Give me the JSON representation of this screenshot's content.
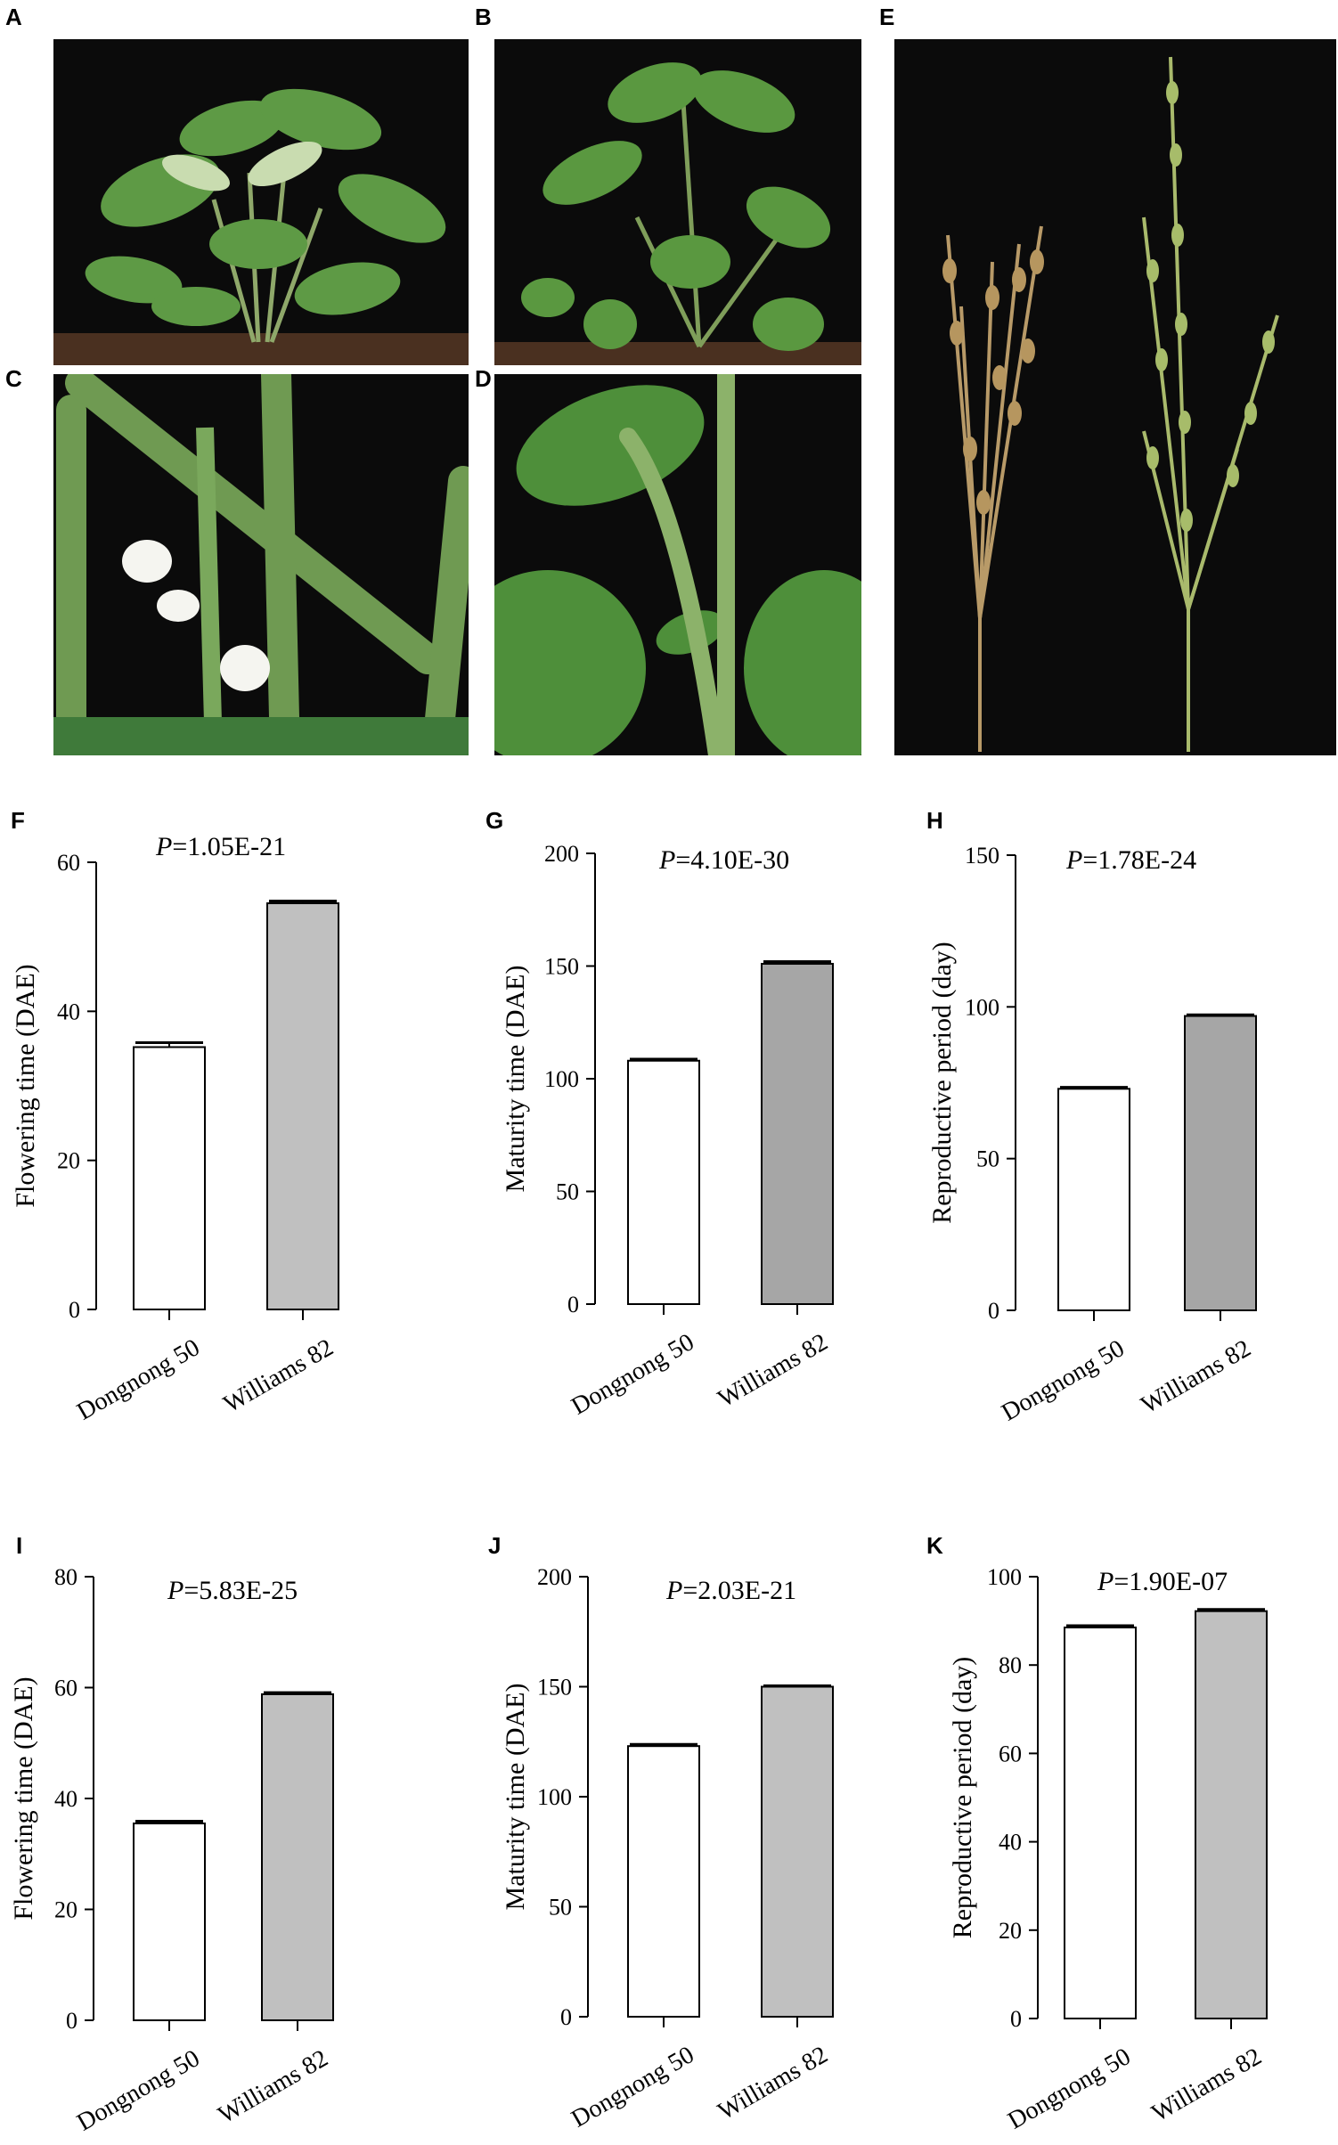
{
  "panels": {
    "A": "A",
    "B": "B",
    "C": "C",
    "D": "D",
    "E": "E",
    "F": "F",
    "G": "G",
    "H": "H",
    "I": "I",
    "J": "J",
    "K": "K"
  },
  "photo_descriptions_icons": {
    "A": "soybean-plant-photo-icon",
    "B": "soybean-plant-photo-icon",
    "C": "soybean-flower-photo-icon",
    "D": "soybean-stem-leaf-photo-icon",
    "E": "mature-plants-photo-icon"
  },
  "colors": {
    "bar_dongnong": "#ffffff",
    "bar_williams_light": "#c0c0c0",
    "bar_williams_dark": "#a6a6a6",
    "axis": "#000000",
    "photo_bg": "#0b0b0b"
  },
  "chart_data": [
    {
      "id": "F",
      "type": "bar",
      "categories": [
        "Dongnong 50",
        "Williams 82"
      ],
      "values": [
        35.2,
        54.5
      ],
      "errors": [
        0.6,
        0.3
      ],
      "p_label": "P",
      "p_value": "=1.05E-21",
      "ylabel": "Flowering time (DAE)",
      "ylim": [
        0,
        60
      ],
      "yticks": [
        0,
        20,
        40,
        60
      ],
      "bar_colors": [
        "#ffffff",
        "#c0c0c0"
      ]
    },
    {
      "id": "G",
      "type": "bar",
      "categories": [
        "Dongnong 50",
        "Williams 82"
      ],
      "values": [
        108,
        151
      ],
      "errors": [
        0.7,
        1.0
      ],
      "p_label": "P",
      "p_value": "=4.10E-30",
      "ylabel": "Maturity time (DAE)",
      "ylim": [
        0,
        200
      ],
      "yticks": [
        0,
        50,
        100,
        150,
        200
      ],
      "bar_colors": [
        "#ffffff",
        "#a6a6a6"
      ]
    },
    {
      "id": "H",
      "type": "bar",
      "categories": [
        "Dongnong 50",
        "Williams 82"
      ],
      "values": [
        73,
        97
      ],
      "errors": [
        0.5,
        0.4
      ],
      "p_label": "P",
      "p_value": "=1.78E-24",
      "ylabel": "Reproductive period (day)",
      "ylim": [
        0,
        150
      ],
      "yticks": [
        0,
        50,
        100,
        150
      ],
      "bar_colors": [
        "#ffffff",
        "#a6a6a6"
      ]
    },
    {
      "id": "I",
      "type": "bar",
      "categories": [
        "Dongnong 50",
        "Williams 82"
      ],
      "values": [
        35.5,
        58.8
      ],
      "errors": [
        0.4,
        0.3
      ],
      "p_label": "P",
      "p_value": "=5.83E-25",
      "ylabel": "Flowering time (DAE)",
      "ylim": [
        0,
        80
      ],
      "yticks": [
        0,
        20,
        40,
        60,
        80
      ],
      "bar_colors": [
        "#ffffff",
        "#c0c0c0"
      ]
    },
    {
      "id": "J",
      "type": "bar",
      "categories": [
        "Dongnong 50",
        "Williams 82"
      ],
      "values": [
        123,
        150
      ],
      "errors": [
        0.8,
        0.4
      ],
      "p_label": "P",
      "p_value": "=2.03E-21",
      "ylabel": "Maturity time (DAE)",
      "ylim": [
        0,
        200
      ],
      "yticks": [
        0,
        50,
        100,
        150,
        200
      ],
      "bar_colors": [
        "#ffffff",
        "#c0c0c0"
      ]
    },
    {
      "id": "K",
      "type": "bar",
      "categories": [
        "Dongnong 50",
        "Williams 82"
      ],
      "values": [
        88.5,
        92.2
      ],
      "errors": [
        0.4,
        0.4
      ],
      "p_label": "P",
      "p_value": "=1.90E-07",
      "ylabel": "Reproductive period (day)",
      "ylim": [
        0,
        100
      ],
      "yticks": [
        0,
        20,
        40,
        60,
        80,
        100
      ],
      "bar_colors": [
        "#ffffff",
        "#c0c0c0"
      ]
    }
  ]
}
